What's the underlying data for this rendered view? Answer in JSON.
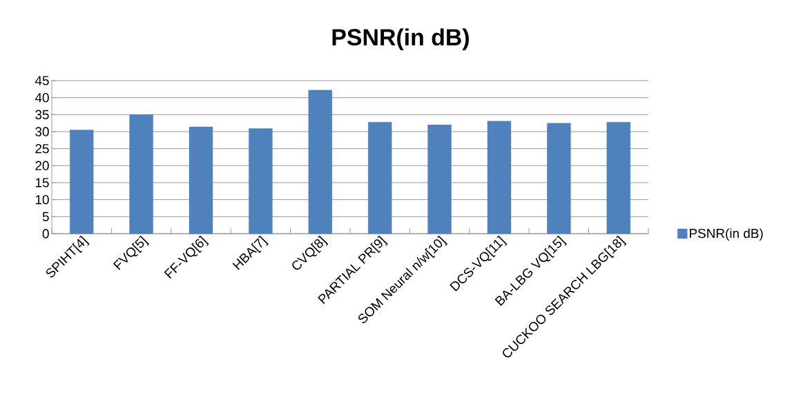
{
  "chart_data": {
    "type": "bar",
    "title": "PSNR(in dB)",
    "categories": [
      "SPIHT[4]",
      "FVQ[5]",
      "FF-VQ[6]",
      "HBA[7]",
      "CVQ[8]",
      "PARTIAL PR[9]",
      "SOM Neural n/w[10]",
      "DCS-VQ[11]",
      "BA-LBG VQ[15]",
      "CUCKOO SEARCH LBG[18]"
    ],
    "series": [
      {
        "name": "PSNR(in dB)",
        "color": "#4f81bd",
        "values": [
          30.5,
          35.0,
          31.4,
          30.9,
          42.2,
          32.8,
          32.0,
          33.1,
          32.5,
          32.8
        ]
      }
    ],
    "ylim": [
      0,
      45
    ],
    "yticks": [
      0,
      5,
      10,
      15,
      20,
      25,
      30,
      35,
      40,
      45
    ],
    "grid": "y",
    "legend": "right"
  }
}
